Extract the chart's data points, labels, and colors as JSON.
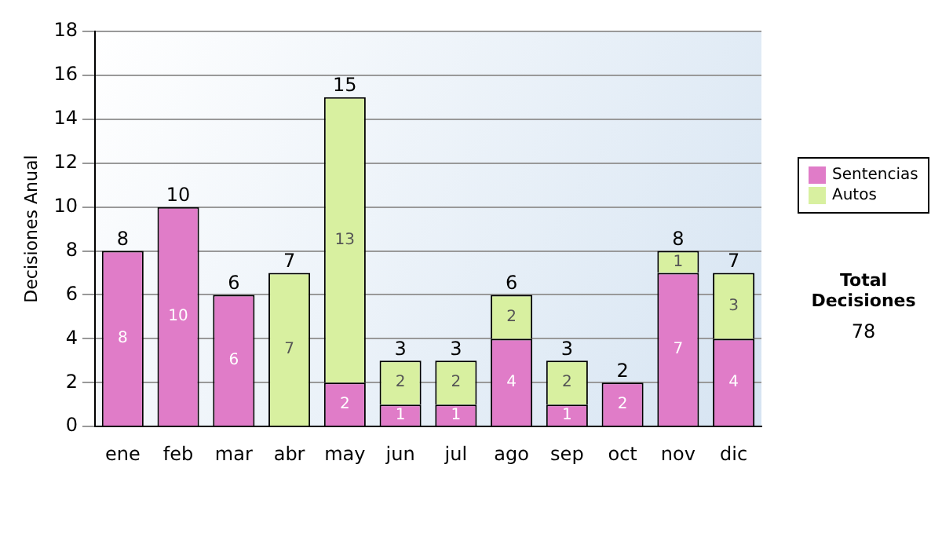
{
  "chart_data": {
    "type": "bar",
    "ylabel": "Decisiones Anual",
    "categories": [
      "ene",
      "feb",
      "mar",
      "abr",
      "may",
      "jun",
      "jul",
      "ago",
      "sep",
      "oct",
      "nov",
      "dic"
    ],
    "series": [
      {
        "name": "Sentencias",
        "color": "#e07cc8",
        "values": [
          8,
          10,
          6,
          0,
          2,
          1,
          1,
          4,
          1,
          2,
          7,
          4
        ],
        "value_labels": [
          "8",
          "10",
          "6",
          null,
          "2",
          "1",
          "1",
          "4",
          "1",
          "2",
          "7",
          "4"
        ]
      },
      {
        "name": "Autos",
        "color": "#d8f0a0",
        "values": [
          0,
          0,
          0,
          7,
          13,
          2,
          2,
          2,
          2,
          0,
          1,
          3
        ],
        "value_labels": [
          null,
          null,
          null,
          "7",
          "13",
          "2",
          "2",
          "2",
          "2",
          null,
          "1",
          "3"
        ]
      }
    ],
    "stacked": true,
    "totals": [
      "8",
      "10",
      "6",
      "7",
      "15",
      "3",
      "3",
      "6",
      "3",
      "2",
      "8",
      "7"
    ],
    "ylim": [
      0,
      18
    ],
    "yticks": [
      0,
      2,
      4,
      6,
      8,
      10,
      12,
      14,
      16,
      18
    ],
    "grid": "y",
    "legend": "right",
    "annotations": [
      "Total Decisiones",
      "78"
    ]
  }
}
